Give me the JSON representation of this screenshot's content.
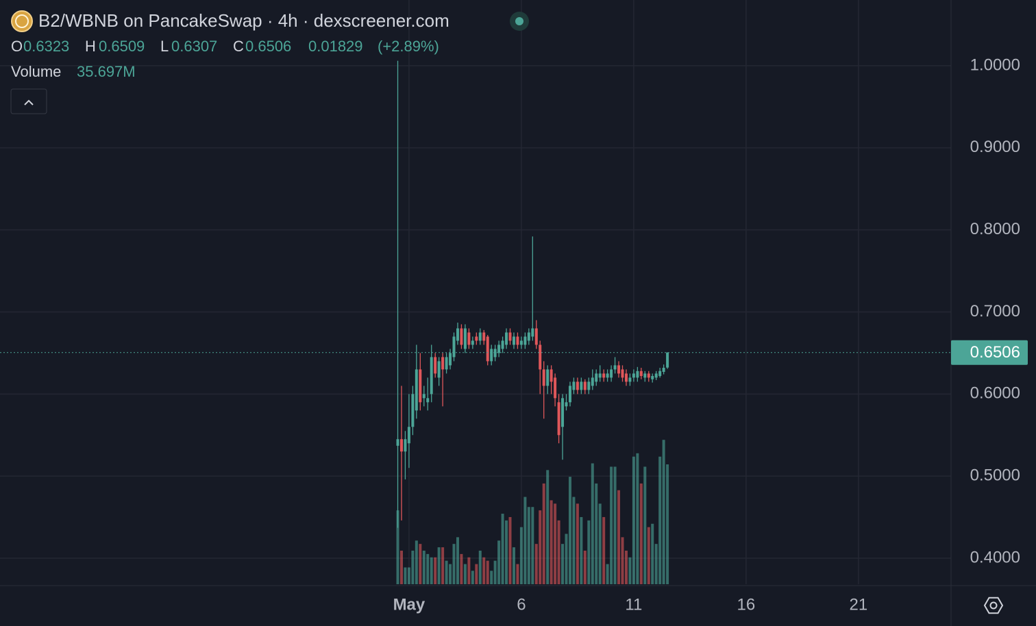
{
  "chart_data": {
    "type": "candlestick",
    "title": "B2/WBNB on PancakeSwap · 4h · dexscreener.com",
    "ohlc_labels": [
      "O",
      "H",
      "L",
      "C"
    ],
    "change": 0.01829,
    "change_pct": {
      "value": 2.89,
      "label": "(+2.89%)"
    },
    "up_color": "#4ca597",
    "down_color": "#e0575a",
    "x": [
      0.5,
      0.667,
      0.833,
      1,
      1.167,
      1.333,
      1.5,
      1.667,
      1.833,
      2,
      2.167,
      2.333,
      2.5,
      2.667,
      2.833,
      3,
      3.167,
      3.333,
      3.5,
      3.667,
      3.833,
      4,
      4.167,
      4.333,
      4.5,
      4.667,
      4.833,
      5,
      5.167,
      5.333,
      5.5,
      5.667,
      5.833,
      6,
      6.167,
      6.333,
      6.5,
      6.667,
      6.833,
      7,
      7.167,
      7.333,
      7.5,
      7.667,
      7.833,
      8,
      8.167,
      8.333,
      8.5,
      8.667,
      8.833,
      9,
      9.167,
      9.333,
      9.5,
      9.667,
      9.833,
      10,
      10.167,
      10.333,
      10.5,
      10.667,
      10.833,
      11,
      11.167,
      11.333,
      11.5,
      11.667,
      11.833,
      12,
      12.167,
      12.333,
      12.5
    ],
    "open": [
      0.537,
      0.545,
      0.53,
      0.54,
      0.56,
      0.58,
      0.63,
      0.595,
      0.59,
      0.6,
      0.645,
      0.62,
      0.645,
      0.63,
      0.635,
      0.645,
      0.665,
      0.68,
      0.655,
      0.675,
      0.66,
      0.67,
      0.665,
      0.675,
      0.67,
      0.64,
      0.645,
      0.65,
      0.655,
      0.66,
      0.675,
      0.66,
      0.67,
      0.66,
      0.66,
      0.665,
      0.67,
      0.68,
      0.66,
      0.63,
      0.61,
      0.63,
      0.62,
      0.59,
      0.56,
      0.585,
      0.59,
      0.605,
      0.615,
      0.605,
      0.615,
      0.605,
      0.61,
      0.615,
      0.62,
      0.625,
      0.62,
      0.62,
      0.63,
      0.635,
      0.63,
      0.625,
      0.615,
      0.62,
      0.62,
      0.628,
      0.62,
      0.625,
      0.618,
      0.62,
      0.622,
      0.627,
      0.6323
    ],
    "high": [
      1.006,
      0.61,
      0.555,
      0.6,
      0.61,
      0.66,
      0.65,
      0.61,
      0.62,
      0.66,
      0.65,
      0.645,
      0.65,
      0.65,
      0.655,
      0.675,
      0.687,
      0.685,
      0.685,
      0.68,
      0.67,
      0.675,
      0.68,
      0.678,
      0.672,
      0.66,
      0.66,
      0.665,
      0.67,
      0.68,
      0.68,
      0.675,
      0.675,
      0.67,
      0.675,
      0.68,
      0.792,
      0.69,
      0.665,
      0.64,
      0.635,
      0.635,
      0.625,
      0.6,
      0.6,
      0.6,
      0.615,
      0.62,
      0.62,
      0.62,
      0.618,
      0.62,
      0.63,
      0.63,
      0.635,
      0.63,
      0.63,
      0.635,
      0.645,
      0.64,
      0.635,
      0.63,
      0.625,
      0.63,
      0.633,
      0.632,
      0.628,
      0.628,
      0.625,
      0.628,
      0.632,
      0.636,
      0.6509
    ],
    "low": [
      0.437,
      0.446,
      0.496,
      0.51,
      0.55,
      0.57,
      0.58,
      0.585,
      0.58,
      0.59,
      0.62,
      0.61,
      0.585,
      0.625,
      0.63,
      0.64,
      0.66,
      0.655,
      0.65,
      0.655,
      0.655,
      0.66,
      0.66,
      0.66,
      0.635,
      0.635,
      0.64,
      0.645,
      0.65,
      0.655,
      0.66,
      0.655,
      0.655,
      0.655,
      0.655,
      0.66,
      0.665,
      0.655,
      0.6,
      0.57,
      0.6,
      0.6,
      0.585,
      0.54,
      0.52,
      0.58,
      0.585,
      0.6,
      0.6,
      0.6,
      0.6,
      0.6,
      0.605,
      0.61,
      0.615,
      0.615,
      0.615,
      0.615,
      0.625,
      0.62,
      0.615,
      0.61,
      0.61,
      0.615,
      0.615,
      0.618,
      0.615,
      0.615,
      0.614,
      0.617,
      0.62,
      0.624,
      0.6307
    ],
    "close": [
      0.545,
      0.53,
      0.545,
      0.56,
      0.6,
      0.63,
      0.59,
      0.6,
      0.595,
      0.645,
      0.625,
      0.64,
      0.63,
      0.645,
      0.65,
      0.67,
      0.68,
      0.66,
      0.68,
      0.66,
      0.665,
      0.665,
      0.675,
      0.665,
      0.64,
      0.655,
      0.655,
      0.66,
      0.665,
      0.675,
      0.665,
      0.67,
      0.66,
      0.665,
      0.67,
      0.675,
      0.68,
      0.66,
      0.63,
      0.61,
      0.63,
      0.615,
      0.595,
      0.55,
      0.595,
      0.59,
      0.61,
      0.615,
      0.605,
      0.615,
      0.605,
      0.615,
      0.62,
      0.625,
      0.625,
      0.62,
      0.625,
      0.63,
      0.635,
      0.625,
      0.62,
      0.615,
      0.62,
      0.625,
      0.628,
      0.622,
      0.625,
      0.62,
      0.622,
      0.625,
      0.628,
      0.632,
      0.6506
    ],
    "volume": {
      "name": "Volume",
      "last_label": "35.697M",
      "values": [
        22,
        10,
        5,
        5,
        10,
        13,
        12,
        10,
        9,
        8,
        8,
        11,
        11,
        7,
        6,
        12,
        14,
        9,
        6,
        8,
        4,
        6,
        10,
        8,
        7,
        4,
        7,
        13,
        21,
        19,
        20,
        11,
        6,
        17,
        26,
        23,
        23,
        12,
        22,
        30,
        34,
        25,
        24,
        19,
        12,
        15,
        32,
        26,
        24,
        20,
        10,
        19,
        36,
        30,
        24,
        20,
        6,
        35,
        35,
        28,
        14,
        10,
        8,
        38,
        39,
        30,
        35,
        17,
        18,
        12,
        38,
        43,
        35.697
      ]
    },
    "xlim": [
      -17.2,
      25.12
    ],
    "xticks": [
      {
        "value": 1,
        "label": "May"
      },
      6,
      11,
      16,
      21
    ],
    "ylim": [
      0.3683,
      1.0801
    ],
    "yticks": [
      {
        "value": 0.4,
        "label": "0.4000"
      },
      {
        "value": 0.5,
        "label": "0.5000"
      },
      {
        "value": 0.6,
        "label": "0.6000"
      },
      {
        "value": 0.7,
        "label": "0.7000"
      },
      {
        "value": 0.8,
        "label": "0.8000"
      },
      {
        "value": 0.9,
        "label": "0.9000"
      },
      {
        "value": 1,
        "label": "1.0000"
      }
    ],
    "y2lim": [
      0,
      174
    ],
    "grid": true
  }
}
